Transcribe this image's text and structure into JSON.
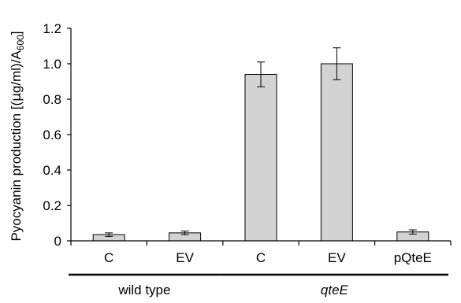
{
  "chart_data": {
    "type": "bar",
    "ylabel": {
      "prefix": "Pyocyanin production [(",
      "mu": "μ",
      "middle": "g/ml)/A",
      "subscript": "600",
      "suffix": "]"
    },
    "ylim": [
      0,
      1.2
    ],
    "yticks": [
      "0",
      "0.2",
      "0.4",
      "0.6",
      "0.8",
      "1.0",
      "1.2"
    ],
    "yticks_values": [
      0,
      0.2,
      0.4,
      0.6,
      0.8,
      1.0,
      1.2
    ],
    "categories": [
      "C",
      "EV",
      "C",
      "EV",
      "pQteE"
    ],
    "values": [
      0.035,
      0.045,
      0.94,
      1.0,
      0.05
    ],
    "errors": [
      0.01,
      0.01,
      0.07,
      0.09,
      0.012
    ],
    "groups": [
      {
        "label": "wild type",
        "italic": false,
        "start": 0,
        "end": 1
      },
      {
        "label": "qteE",
        "italic": true,
        "start": 2,
        "end": 4
      }
    ],
    "bar_color": "#d3d3d3",
    "bar_edge_color": "#000000",
    "grid": false
  }
}
